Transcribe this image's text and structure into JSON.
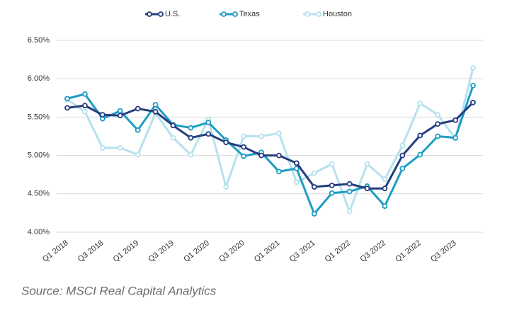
{
  "chart_data": {
    "type": "line",
    "legend_position": "top",
    "source": "Source: MSCI Real Capital Analytics",
    "categories": [
      "Q1 2018",
      null,
      "Q3 2018",
      null,
      "Q1 2019",
      null,
      "Q3 2019",
      null,
      "Q1 2020",
      null,
      "Q3 2020",
      null,
      "Q1 2021",
      null,
      "Q3 2021",
      null,
      "Q1 2022",
      null,
      "Q3 2022",
      null,
      "Q1 2022",
      null,
      "Q3 2023",
      null
    ],
    "series": [
      {
        "name": "U.S.",
        "color": "#253d7f",
        "values": [
          5.62,
          5.65,
          5.53,
          5.52,
          5.61,
          5.57,
          5.39,
          5.23,
          5.28,
          5.17,
          5.11,
          5.0,
          5.0,
          4.9,
          4.59,
          4.61,
          4.63,
          4.57,
          4.57,
          5.0,
          5.26,
          5.41,
          5.46,
          5.69
        ]
      },
      {
        "name": "Texas",
        "color": "#1c9dc4",
        "values": [
          5.74,
          5.8,
          5.48,
          5.58,
          5.33,
          5.66,
          5.4,
          5.36,
          5.43,
          5.2,
          4.99,
          5.04,
          4.79,
          4.83,
          4.24,
          4.51,
          4.53,
          4.6,
          4.34,
          4.83,
          5.01,
          5.25,
          5.23,
          5.91
        ]
      },
      {
        "name": "Houston",
        "color": "#b6e1ee",
        "values": [
          5.73,
          5.57,
          5.1,
          5.1,
          5.01,
          5.55,
          5.23,
          5.01,
          5.47,
          4.59,
          5.25,
          5.25,
          5.29,
          4.65,
          4.77,
          4.89,
          4.27,
          4.89,
          4.69,
          5.13,
          5.68,
          5.53,
          5.22,
          6.14
        ]
      }
    ],
    "ylim": [
      4,
      6.5
    ],
    "yticks": [
      {
        "value": 4,
        "label": "4.00%"
      },
      {
        "value": 4.5,
        "label": "4.50%"
      },
      {
        "value": 5,
        "label": "5.00%"
      },
      {
        "value": 5.5,
        "label": "5.50%"
      },
      {
        "value": 6,
        "label": "6.00%"
      },
      {
        "value": 6.5,
        "label": "6.50%"
      }
    ],
    "grid": true
  }
}
